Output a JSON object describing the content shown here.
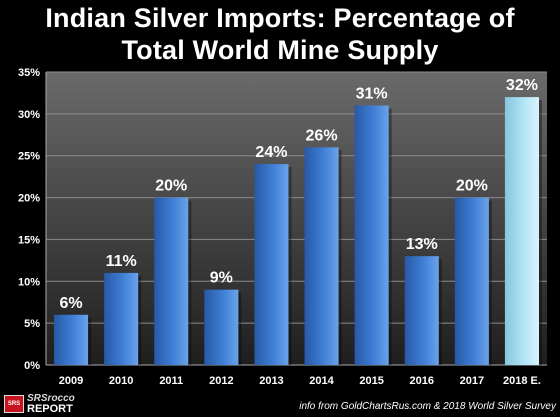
{
  "chart_data": {
    "type": "bar",
    "title": "Indian Silver Imports: Percentage of Total World Mine Supply",
    "title_lines": [
      "Indian Silver Imports: Percentage of",
      "Total World Mine Supply"
    ],
    "categories": [
      "2009",
      "2010",
      "2011",
      "2012",
      "2013",
      "2014",
      "2015",
      "2016",
      "2017",
      "2018 E."
    ],
    "values": [
      6,
      11,
      20,
      9,
      24,
      26,
      31,
      13,
      20,
      32
    ],
    "data_labels": [
      "6%",
      "11%",
      "20%",
      "9%",
      "24%",
      "26%",
      "31%",
      "13%",
      "20%",
      "32%"
    ],
    "estimated": [
      false,
      false,
      false,
      false,
      false,
      false,
      false,
      false,
      false,
      true
    ],
    "yticks": [
      "0%",
      "5%",
      "10%",
      "15%",
      "20%",
      "25%",
      "30%",
      "35%"
    ],
    "ylim": [
      0,
      35
    ],
    "grid": true,
    "xlabel": "",
    "ylabel": "",
    "colors": {
      "bar": "#3f7fd6",
      "bar_dark": "#2859a6",
      "bar_light": "#6aa3ea",
      "estimate_bar": "#b2e4f6",
      "estimate_dark": "#86c6dd",
      "plot_bg_top": "#6a6a6a",
      "plot_bg_bottom": "#1e1e1e",
      "grid": "#8a8a8a",
      "text": "#ffffff"
    }
  },
  "footer": {
    "brand_line1": "SRSrocco",
    "brand_line2": "REPORT",
    "brand_icon": "srsrocco-logo-icon",
    "source": "info from GoldChartsRus.com & 2018 World Silver Survey"
  }
}
